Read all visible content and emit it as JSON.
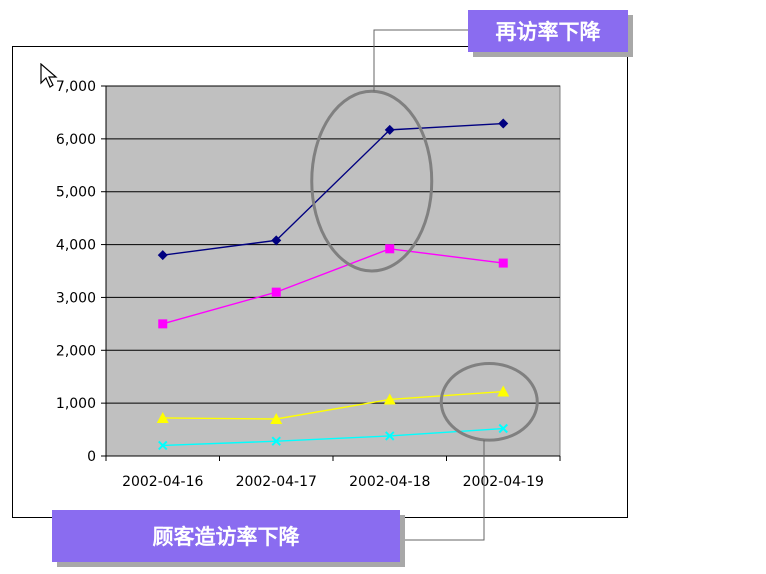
{
  "callouts": {
    "top": "再访率下降",
    "bottom": "顾客造访率下降"
  },
  "chart_data": {
    "type": "line",
    "categories": [
      "2002-04-16",
      "2002-04-17",
      "2002-04-18",
      "2002-04-19"
    ],
    "ylim": [
      0,
      7000
    ],
    "yticks": [
      0,
      1000,
      2000,
      3000,
      4000,
      5000,
      6000,
      7000
    ],
    "ytick_labels": [
      "0",
      "1,000",
      "2,000",
      "3,000",
      "4,000",
      "5,000",
      "6,000",
      "7,000"
    ],
    "plot_background": "#c0c0c0",
    "grid": true,
    "series": [
      {
        "values": [
          3800,
          4080,
          6170,
          6290
        ],
        "color": "#000080",
        "marker": "diamond"
      },
      {
        "values": [
          2500,
          3100,
          3920,
          3650
        ],
        "color": "#ff00ff",
        "marker": "square"
      },
      {
        "values": [
          720,
          700,
          1070,
          1220
        ],
        "color": "#ffff00",
        "marker": "triangle"
      },
      {
        "values": [
          200,
          280,
          380,
          520
        ],
        "color": "#00ffff",
        "marker": "x"
      }
    ],
    "annotations": [
      {
        "shape": "ellipse",
        "around": "2002-04-18",
        "y_range": [
          3500,
          6900
        ]
      },
      {
        "shape": "ellipse",
        "around": "2002-04-19",
        "y_range": [
          300,
          1750
        ]
      }
    ]
  }
}
